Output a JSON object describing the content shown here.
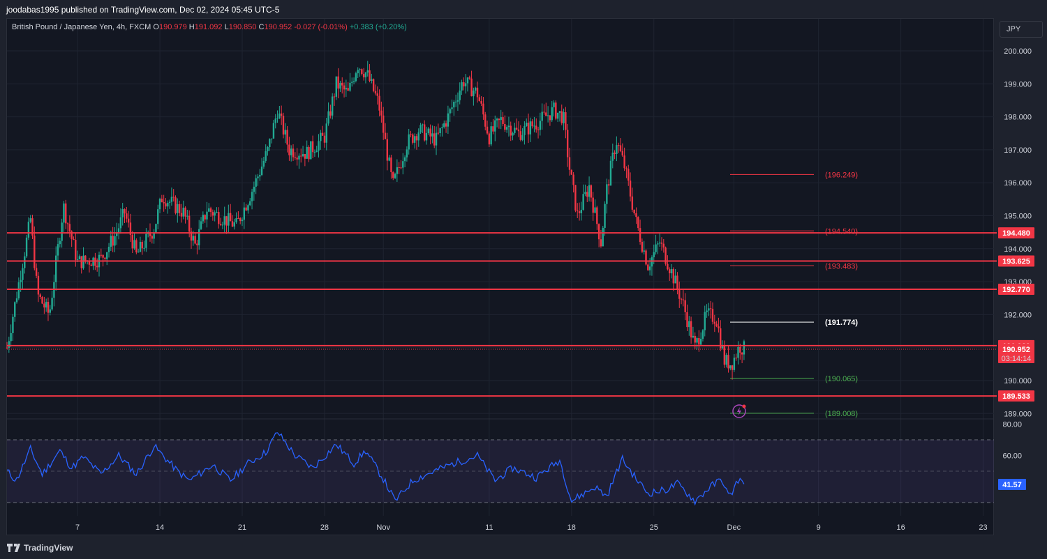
{
  "header": {
    "publisher": "joodabas1995 published on TradingView.com, Dec 02, 2024 05:45 UTC-5"
  },
  "legend": {
    "symbol": "British Pound / Japanese Yen, 4h, FXCM",
    "open_label": "O",
    "open": "190.979",
    "high_label": "H",
    "high": "191.092",
    "low_label": "L",
    "low": "190.850",
    "close_label": "C",
    "close": "190.952",
    "change": "-0.027 (-0.01%)",
    "indicator_change": "+0.383 (+0.20%)"
  },
  "currency_button": "JPY",
  "footer": {
    "brand": "TradingView"
  },
  "colors": {
    "background": "#131722",
    "up": "#22ab94",
    "down": "#f23645",
    "rsi_line": "#2962ff",
    "rsi_band": "#7e57c2",
    "level": "#f23645"
  },
  "chart_data": [
    {
      "type": "candlestick",
      "symbol": "GBPJPY",
      "timeframe": "4h",
      "y_axis": {
        "min": 188.8,
        "max": 200.2,
        "ticks": [
          "200.000",
          "199.000",
          "198.000",
          "197.000",
          "196.000",
          "195.000",
          "194.000",
          "193.000",
          "192.000",
          "191.000",
          "190.000",
          "189.000"
        ]
      },
      "x_axis": {
        "ticks": [
          "7",
          "14",
          "21",
          "28",
          "Nov",
          "11",
          "18",
          "25",
          "Dec",
          "9",
          "16",
          "23"
        ]
      },
      "path_points": [
        {
          "d": 0.0,
          "p": 191.0
        },
        {
          "d": 2.0,
          "p": 194.9
        },
        {
          "d": 2.6,
          "p": 192.6
        },
        {
          "d": 3.6,
          "p": 192.0
        },
        {
          "d": 4.8,
          "p": 195.3
        },
        {
          "d": 6.0,
          "p": 193.6
        },
        {
          "d": 8.0,
          "p": 193.7
        },
        {
          "d": 9.2,
          "p": 194.4
        },
        {
          "d": 10.0,
          "p": 195.1
        },
        {
          "d": 11.0,
          "p": 193.8
        },
        {
          "d": 12.5,
          "p": 194.6
        },
        {
          "d": 13.2,
          "p": 195.6
        },
        {
          "d": 15.0,
          "p": 195.1
        },
        {
          "d": 16.0,
          "p": 194.1
        },
        {
          "d": 17.0,
          "p": 195.2
        },
        {
          "d": 19.5,
          "p": 194.7
        },
        {
          "d": 21.0,
          "p": 195.9
        },
        {
          "d": 22.2,
          "p": 197.0
        },
        {
          "d": 23.0,
          "p": 198.2
        },
        {
          "d": 24.0,
          "p": 197.0
        },
        {
          "d": 25.5,
          "p": 196.9
        },
        {
          "d": 27.0,
          "p": 197.4
        },
        {
          "d": 28.0,
          "p": 199.0
        },
        {
          "d": 29.0,
          "p": 198.7
        },
        {
          "d": 29.8,
          "p": 199.6
        },
        {
          "d": 30.6,
          "p": 199.3
        },
        {
          "d": 31.6,
          "p": 198.4
        },
        {
          "d": 32.8,
          "p": 195.9
        },
        {
          "d": 34.0,
          "p": 197.2
        },
        {
          "d": 35.0,
          "p": 197.6
        },
        {
          "d": 36.5,
          "p": 197.3
        },
        {
          "d": 37.5,
          "p": 198.0
        },
        {
          "d": 38.8,
          "p": 199.1
        },
        {
          "d": 40.0,
          "p": 198.7
        },
        {
          "d": 41.0,
          "p": 197.4
        },
        {
          "d": 42.0,
          "p": 197.9
        },
        {
          "d": 43.5,
          "p": 197.5
        },
        {
          "d": 45.0,
          "p": 197.8
        },
        {
          "d": 46.5,
          "p": 198.2
        },
        {
          "d": 47.3,
          "p": 198.0
        },
        {
          "d": 47.8,
          "p": 196.5
        },
        {
          "d": 48.5,
          "p": 195.0
        },
        {
          "d": 49.5,
          "p": 195.9
        },
        {
          "d": 50.5,
          "p": 194.2
        },
        {
          "d": 51.0,
          "p": 195.8
        },
        {
          "d": 51.8,
          "p": 197.3
        },
        {
          "d": 52.5,
          "p": 196.5
        },
        {
          "d": 53.5,
          "p": 194.8
        },
        {
          "d": 54.5,
          "p": 193.5
        },
        {
          "d": 55.5,
          "p": 194.2
        },
        {
          "d": 56.5,
          "p": 193.3
        },
        {
          "d": 57.5,
          "p": 192.3
        },
        {
          "d": 58.5,
          "p": 191.0
        },
        {
          "d": 59.5,
          "p": 192.0
        },
        {
          "d": 60.3,
          "p": 191.9
        },
        {
          "d": 61.0,
          "p": 190.6
        },
        {
          "d": 61.6,
          "p": 190.5
        },
        {
          "d": 62.3,
          "p": 191.05
        },
        {
          "d": 62.7,
          "p": 190.95
        }
      ],
      "price_levels": [
        "194.480",
        "193.625",
        "192.770",
        "191.060",
        "189.533"
      ],
      "current_price": "190.952",
      "countdown": "03:14:14",
      "projection_levels": [
        {
          "value": 196.249,
          "label": "(196.249)",
          "color": "#f23645"
        },
        {
          "value": 194.54,
          "label": "(194.540)",
          "color": "#f23645"
        },
        {
          "value": 193.483,
          "label": "(193.483)",
          "color": "#f23645"
        },
        {
          "value": 191.774,
          "label": "(191.774)",
          "color": "#ffffff"
        },
        {
          "value": 190.065,
          "label": "(190.065)",
          "color": "#4caf50"
        },
        {
          "value": 189.008,
          "label": "(189.008)",
          "color": "#4caf50"
        }
      ]
    },
    {
      "type": "line",
      "name": "RSI",
      "y_axis": {
        "ticks": [
          "80.00",
          "60.00"
        ],
        "band": [
          70,
          30
        ],
        "mid": 50
      },
      "current_value": "41.57",
      "path_points": [
        {
          "d": 0.0,
          "v": 50
        },
        {
          "d": 0.8,
          "v": 44
        },
        {
          "d": 2.0,
          "v": 64
        },
        {
          "d": 3.0,
          "v": 48
        },
        {
          "d": 4.5,
          "v": 63
        },
        {
          "d": 5.5,
          "v": 52
        },
        {
          "d": 6.5,
          "v": 59
        },
        {
          "d": 8.0,
          "v": 48
        },
        {
          "d": 9.5,
          "v": 60
        },
        {
          "d": 11.0,
          "v": 48
        },
        {
          "d": 12.5,
          "v": 66
        },
        {
          "d": 14.5,
          "v": 50
        },
        {
          "d": 15.5,
          "v": 44
        },
        {
          "d": 17.5,
          "v": 54
        },
        {
          "d": 19.0,
          "v": 44
        },
        {
          "d": 20.5,
          "v": 55
        },
        {
          "d": 22.0,
          "v": 62
        },
        {
          "d": 23.0,
          "v": 75
        },
        {
          "d": 24.5,
          "v": 60
        },
        {
          "d": 26.0,
          "v": 52
        },
        {
          "d": 28.0,
          "v": 67
        },
        {
          "d": 29.5,
          "v": 55
        },
        {
          "d": 30.5,
          "v": 63
        },
        {
          "d": 32.0,
          "v": 45
        },
        {
          "d": 33.0,
          "v": 31
        },
        {
          "d": 34.5,
          "v": 44
        },
        {
          "d": 36.0,
          "v": 49
        },
        {
          "d": 38.0,
          "v": 55
        },
        {
          "d": 40.0,
          "v": 60
        },
        {
          "d": 41.5,
          "v": 44
        },
        {
          "d": 43.0,
          "v": 52
        },
        {
          "d": 45.0,
          "v": 46
        },
        {
          "d": 47.0,
          "v": 57
        },
        {
          "d": 48.0,
          "v": 31
        },
        {
          "d": 50.0,
          "v": 40
        },
        {
          "d": 51.0,
          "v": 34
        },
        {
          "d": 52.3,
          "v": 58
        },
        {
          "d": 53.5,
          "v": 45
        },
        {
          "d": 54.5,
          "v": 36
        },
        {
          "d": 56.0,
          "v": 38
        },
        {
          "d": 57.0,
          "v": 42
        },
        {
          "d": 58.5,
          "v": 31
        },
        {
          "d": 59.8,
          "v": 40
        },
        {
          "d": 60.8,
          "v": 45
        },
        {
          "d": 61.4,
          "v": 33
        },
        {
          "d": 62.2,
          "v": 45
        },
        {
          "d": 62.7,
          "v": 41.57
        }
      ]
    }
  ]
}
